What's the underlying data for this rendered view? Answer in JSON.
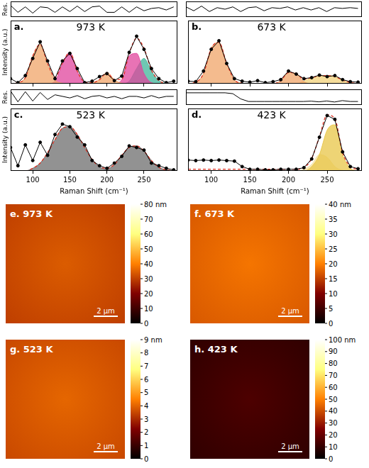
{
  "chart_data": [
    {
      "type": "line",
      "letter": "a.",
      "title": "973 K",
      "residual_label": "Res.",
      "y_label": "Intensity (a.u.)",
      "tick_labels": false,
      "xlim": [
        70,
        295
      ],
      "xticks": [
        100,
        150,
        200,
        250
      ],
      "ylim": [
        0,
        1.25
      ],
      "x": [
        70,
        80,
        90,
        100,
        110,
        120,
        130,
        140,
        150,
        160,
        170,
        180,
        190,
        200,
        210,
        220,
        230,
        240,
        250,
        260,
        270,
        280,
        290
      ],
      "residual": [
        0.5,
        -0.4,
        0.3,
        -0.5,
        0.3,
        0.2,
        -0.4,
        0.3,
        -0.3,
        0.4,
        -0.3,
        0.3,
        0.4,
        -0.4,
        -0.4,
        0.3,
        -0.4,
        0.3,
        -0.2,
        0.1,
        0.2,
        -0.1,
        0.3
      ],
      "residual_ylim": [
        -1,
        1
      ],
      "series": [
        {
          "type": "scatter",
          "color": "#000000",
          "marker": "circle",
          "line_style": "solid",
          "values": [
            0.1,
            0.02,
            0.16,
            0.5,
            0.83,
            0.45,
            0.1,
            0.45,
            0.6,
            0.3,
            0.02,
            0.05,
            0.14,
            0.2,
            0.06,
            0.15,
            0.62,
            0.94,
            0.68,
            0.3,
            0.1,
            0.02,
            0.05
          ]
        },
        {
          "type": "line",
          "color": "#e03020",
          "line_style": "dashed",
          "values": [
            0,
            0.02,
            0.12,
            0.55,
            0.78,
            0.4,
            0.13,
            0.41,
            0.62,
            0.25,
            0.03,
            0.02,
            0.08,
            0.22,
            0.08,
            0.09,
            0.6,
            0.9,
            0.7,
            0.27,
            0.06,
            0.01,
            0
          ]
        },
        {
          "type": "area",
          "color": "#f0a468",
          "values": [
            0,
            0.02,
            0.12,
            0.55,
            0.78,
            0.4,
            0.08,
            0.01,
            0,
            0,
            0,
            0,
            0,
            0,
            0,
            0,
            0,
            0,
            0,
            0,
            0,
            0,
            0
          ]
        },
        {
          "type": "area",
          "color": "#e0449c",
          "values": [
            0,
            0,
            0,
            0,
            0,
            0,
            0.05,
            0.4,
            0.62,
            0.25,
            0.03,
            0,
            0,
            0,
            0,
            0,
            0,
            0,
            0,
            0,
            0,
            0,
            0
          ]
        },
        {
          "type": "area",
          "color": "#f0a468",
          "values": [
            0,
            0,
            0,
            0,
            0,
            0,
            0,
            0,
            0,
            0,
            0,
            0.02,
            0.08,
            0.22,
            0.08,
            0.01,
            0,
            0,
            0,
            0,
            0,
            0,
            0
          ]
        },
        {
          "type": "area",
          "color": "#e0449c",
          "values": [
            0,
            0,
            0,
            0,
            0,
            0,
            0,
            0,
            0,
            0,
            0,
            0,
            0,
            0,
            0,
            0.08,
            0.55,
            0.6,
            0.2,
            0.02,
            0,
            0,
            0
          ]
        },
        {
          "type": "area",
          "color": "#3fb59a",
          "values": [
            0,
            0,
            0,
            0,
            0,
            0,
            0,
            0,
            0,
            0,
            0,
            0,
            0,
            0,
            0,
            0,
            0.05,
            0.3,
            0.5,
            0.25,
            0.06,
            0.01,
            0
          ]
        }
      ]
    },
    {
      "type": "line",
      "letter": "b.",
      "title": "673 K",
      "tick_labels": false,
      "xlim": [
        70,
        295
      ],
      "xticks": [
        100,
        150,
        200,
        250
      ],
      "ylim": [
        0,
        1.25
      ],
      "x": [
        70,
        80,
        90,
        100,
        110,
        120,
        130,
        140,
        150,
        160,
        170,
        180,
        190,
        200,
        210,
        220,
        230,
        240,
        250,
        260,
        270,
        280,
        290
      ],
      "residual": [
        0.3,
        -0.2,
        0.4,
        -0.3,
        0.2,
        0,
        0.3,
        -0.3,
        0.2,
        0.3,
        -0.2,
        0.2,
        0.1,
        0.3,
        -0.1,
        0.2,
        -0.1,
        0.2,
        -0.3,
        0.2,
        0.1,
        0.2,
        0.1
      ],
      "residual_ylim": [
        -1,
        1
      ],
      "series": [
        {
          "type": "scatter",
          "color": "#000000",
          "marker": "circle",
          "line_style": "solid",
          "values": [
            0.05,
            0.04,
            0.25,
            0.68,
            0.85,
            0.4,
            0.1,
            0.05,
            0.03,
            0.06,
            0.02,
            0.04,
            0.08,
            0.25,
            0.19,
            0.1,
            0.12,
            0.17,
            0.14,
            0.16,
            0.08,
            0.04,
            0.03
          ]
        },
        {
          "type": "line",
          "color": "#e03020",
          "line_style": "dashed",
          "values": [
            0,
            0.03,
            0.2,
            0.7,
            0.82,
            0.4,
            0.08,
            0.01,
            0,
            0,
            0,
            0,
            0.06,
            0.22,
            0.2,
            0.09,
            0.12,
            0.15,
            0.16,
            0.14,
            0.07,
            0.02,
            0
          ]
        },
        {
          "type": "area",
          "color": "#f0a468",
          "values": [
            0,
            0.03,
            0.2,
            0.7,
            0.82,
            0.4,
            0.08,
            0.01,
            0,
            0,
            0,
            0,
            0,
            0,
            0,
            0,
            0,
            0,
            0,
            0,
            0,
            0,
            0
          ]
        },
        {
          "type": "area",
          "color": "#f0a468",
          "values": [
            0,
            0,
            0,
            0,
            0,
            0,
            0,
            0,
            0,
            0,
            0,
            0,
            0.06,
            0.22,
            0.2,
            0.04,
            0,
            0,
            0,
            0,
            0,
            0,
            0
          ]
        },
        {
          "type": "area",
          "color": "#f2d27a",
          "values": [
            0,
            0,
            0,
            0,
            0,
            0,
            0,
            0,
            0,
            0,
            0,
            0,
            0,
            0,
            0,
            0.05,
            0.12,
            0.15,
            0.16,
            0.14,
            0.07,
            0.02,
            0
          ]
        }
      ]
    },
    {
      "type": "line",
      "letter": "c.",
      "title": "523 K",
      "residual_label": "Res.",
      "y_label": "Intensity (a.u.)",
      "x_label": "Raman Shift (cm⁻¹)",
      "tick_labels": "x",
      "xlim": [
        70,
        295
      ],
      "xticks": [
        100,
        150,
        200,
        250
      ],
      "ylim": [
        0,
        1.2
      ],
      "x": [
        70,
        80,
        90,
        100,
        110,
        120,
        130,
        140,
        150,
        160,
        170,
        180,
        190,
        200,
        210,
        220,
        230,
        240,
        250,
        260,
        270,
        280,
        290
      ],
      "residual": [
        0.8,
        -0.6,
        0.7,
        -0.5,
        0.6,
        -0.3,
        0.3,
        0.1,
        -0.1,
        0.2,
        -0.2,
        0.1,
        0.2,
        -0.1,
        0.1,
        -0.2,
        0.1,
        0.1,
        -0.1,
        0.2,
        -0.1,
        0.1,
        0.1
      ],
      "residual_ylim": [
        -1,
        1
      ],
      "series": [
        {
          "type": "scatter",
          "color": "#000000",
          "marker": "circle",
          "line_style": "solid",
          "values": [
            0.45,
            0.1,
            0.5,
            0.2,
            0.55,
            0.3,
            0.7,
            0.9,
            0.85,
            0.65,
            0.5,
            0.2,
            0.1,
            0.05,
            0.15,
            0.28,
            0.48,
            0.45,
            0.4,
            0.15,
            0.1,
            0.05,
            0.02
          ]
        },
        {
          "type": "line",
          "color": "#e03020",
          "line_style": "dashed",
          "values": [
            0,
            0,
            0,
            0.05,
            0.15,
            0.35,
            0.6,
            0.82,
            0.85,
            0.7,
            0.45,
            0.22,
            0.08,
            0.05,
            0.12,
            0.3,
            0.45,
            0.48,
            0.38,
            0.2,
            0.07,
            0.02,
            0
          ]
        },
        {
          "type": "area",
          "color": "#6e6e6e",
          "values": [
            0,
            0,
            0,
            0.05,
            0.15,
            0.35,
            0.6,
            0.82,
            0.85,
            0.7,
            0.45,
            0.22,
            0.08,
            0.02,
            0,
            0,
            0,
            0,
            0,
            0,
            0,
            0,
            0
          ]
        },
        {
          "type": "area",
          "color": "#6e6e6e",
          "values": [
            0,
            0,
            0,
            0,
            0,
            0,
            0,
            0,
            0,
            0,
            0,
            0,
            0,
            0.03,
            0.12,
            0.3,
            0.45,
            0.48,
            0.38,
            0.2,
            0.07,
            0.02,
            0
          ]
        }
      ]
    },
    {
      "type": "line",
      "letter": "d.",
      "title": "423 K",
      "x_label": "Raman Shift (cm⁻¹)",
      "tick_labels": "x",
      "xlim": [
        70,
        295
      ],
      "xticks": [
        100,
        150,
        200,
        250
      ],
      "ylim": [
        0,
        1.15
      ],
      "x": [
        70,
        80,
        90,
        100,
        110,
        120,
        130,
        140,
        150,
        160,
        170,
        180,
        190,
        200,
        210,
        220,
        230,
        240,
        250,
        260,
        270,
        280,
        290
      ],
      "residual": [
        0.5,
        0.5,
        0.5,
        0.5,
        0.5,
        0.5,
        0.45,
        0.15,
        0,
        0,
        0,
        0,
        0,
        0,
        0,
        0,
        0.02,
        -0.02,
        0.03,
        -0.03,
        0.05,
        0,
        0
      ],
      "residual_ylim": [
        -0.2,
        0.7
      ],
      "series": [
        {
          "type": "scatter",
          "color": "#000000",
          "marker": "circle",
          "line_style": "solid",
          "values": [
            0.2,
            0.19,
            0.2,
            0.19,
            0.2,
            0.19,
            0.18,
            0.08,
            0.03,
            0.03,
            0.02,
            0.02,
            0.03,
            0.03,
            0.03,
            0.06,
            0.22,
            0.62,
            1.02,
            0.95,
            0.35,
            0.08,
            0.04
          ]
        },
        {
          "type": "line",
          "color": "#e03020",
          "line_style": "dashed",
          "values": [
            0.03,
            0.03,
            0.03,
            0.03,
            0.03,
            0.03,
            0.03,
            0.03,
            0.03,
            0.03,
            0.03,
            0.03,
            0.03,
            0.03,
            0.03,
            0.06,
            0.23,
            0.63,
            1.03,
            0.96,
            0.34,
            0.08,
            0.03
          ]
        },
        {
          "type": "area",
          "color": "#e8c547",
          "values": [
            0,
            0,
            0,
            0,
            0,
            0,
            0,
            0,
            0,
            0,
            0,
            0,
            0,
            0,
            0,
            0,
            0.08,
            0.3,
            0.75,
            0.85,
            0.3,
            0.05,
            0
          ]
        },
        {
          "type": "area",
          "color": "#f5e2a0",
          "values": [
            0,
            0,
            0,
            0,
            0,
            0,
            0,
            0,
            0,
            0,
            0,
            0,
            0,
            0,
            0,
            0.03,
            0.12,
            0.3,
            0.25,
            0.08,
            0.01,
            0,
            0
          ]
        }
      ]
    }
  ],
  "images": [
    {
      "label": "e. 973 K",
      "scale_bar": "2 μm",
      "colorbar": {
        "lim": [
          0,
          80
        ],
        "ticks": [
          0,
          10,
          20,
          30,
          40,
          50,
          60,
          70,
          {
            "value": 80,
            "label": "80 nm"
          }
        ]
      }
    },
    {
      "label": "f. 673 K",
      "scale_bar": "2 μm",
      "colorbar": {
        "lim": [
          0,
          40
        ],
        "ticks": [
          0,
          5,
          10,
          15,
          20,
          25,
          30,
          35,
          {
            "value": 40,
            "label": "40 nm"
          }
        ]
      }
    },
    {
      "label": "g. 523 K",
      "scale_bar": "2 μm",
      "colorbar": {
        "lim": [
          0,
          9
        ],
        "ticks": [
          0,
          1,
          2,
          3,
          4,
          5,
          6,
          7,
          8,
          {
            "value": 9,
            "label": "9 nm"
          }
        ]
      }
    },
    {
      "label": "h. 423 K",
      "scale_bar": "2 μm",
      "colorbar": {
        "lim": [
          0,
          100
        ],
        "ticks": [
          0,
          10,
          20,
          30,
          40,
          50,
          60,
          70,
          80,
          90,
          {
            "value": 100,
            "label": "100 nm"
          }
        ]
      }
    }
  ]
}
